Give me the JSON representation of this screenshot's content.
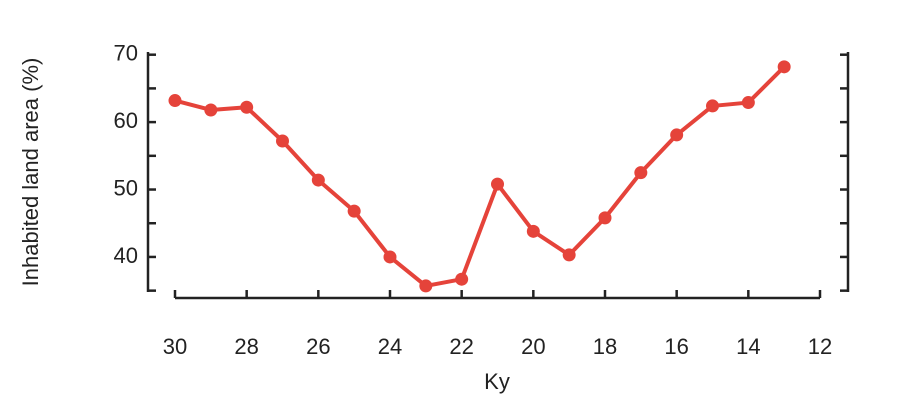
{
  "chart_data": {
    "type": "line",
    "x_label": "Ky",
    "y_label": "Inhabited land area (%)",
    "x": [
      30,
      29,
      28,
      27,
      26,
      25,
      24,
      23,
      22,
      21,
      20,
      19,
      18,
      17,
      16,
      15,
      14,
      13
    ],
    "series": [
      {
        "name": "Inhabited land area",
        "color": "#e5433a",
        "values": [
          63.2,
          61.8,
          62.2,
          57.2,
          51.4,
          46.8,
          40,
          35.7,
          36.7,
          50.8,
          43.8,
          40.3,
          45.8,
          52.5,
          58.1,
          62.4,
          62.9,
          68.2
        ]
      }
    ],
    "xlim": [
      30,
      12
    ],
    "xticks": [
      30,
      28,
      26,
      24,
      22,
      20,
      18,
      16,
      14,
      12
    ],
    "ylim": [
      34.8,
      70.4
    ],
    "yticks": [
      40,
      50,
      60,
      70
    ],
    "minor_yticks": [
      35,
      45,
      55,
      65
    ],
    "mirror_y_axis": true,
    "grid": false
  }
}
